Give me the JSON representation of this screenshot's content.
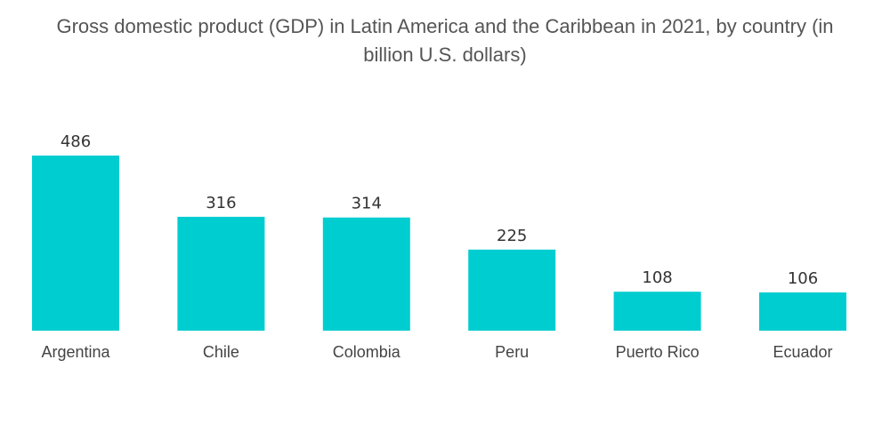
{
  "chart_data": {
    "type": "bar",
    "title_line1": "Gross domestic product (GDP) in Latin America and the Caribbean in 2021, by country (in",
    "title_line2": "billion U.S. dollars)",
    "title": "Gross domestic product (GDP) in Latin America and the Caribbean in 2021, by country (in billion U.S. dollars)",
    "xlabel": "",
    "ylabel": "",
    "categories": [
      "Argentina",
      "Chile",
      "Colombia",
      "Peru",
      "Puerto Rico",
      "Ecuador"
    ],
    "values": [
      486,
      316,
      314,
      225,
      108,
      106
    ],
    "data_labels": [
      "486",
      "316",
      "314",
      "225",
      "108",
      "106"
    ],
    "ylim": [
      0,
      486
    ],
    "grid": false,
    "legend": "none",
    "bar_color": "#00CDD0"
  }
}
